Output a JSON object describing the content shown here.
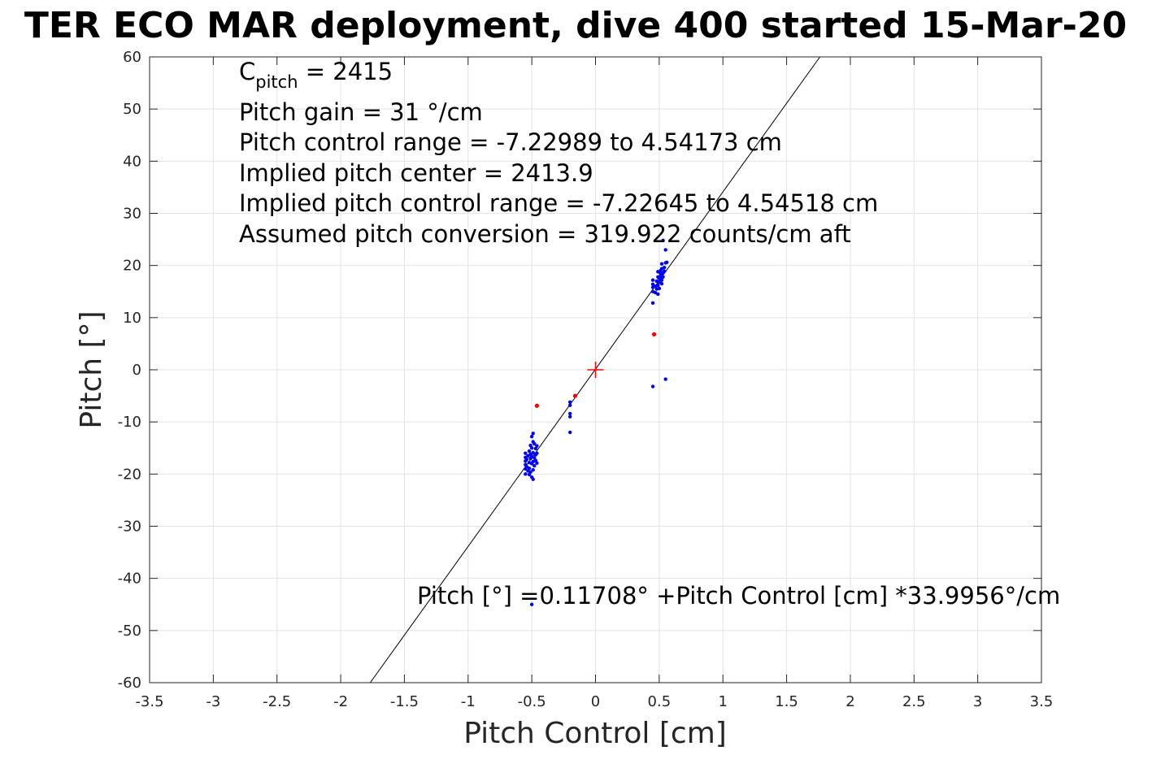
{
  "chart_data": {
    "type": "scatter",
    "title": "TER ECO MAR deployment, dive 400 started 15-Mar-20",
    "xlabel": "Pitch Control [cm]",
    "ylabel": "Pitch [°]",
    "xlim": [
      -3.5,
      3.5
    ],
    "ylim": [
      -60,
      60
    ],
    "xticks": [
      -3.5,
      -3,
      -2.5,
      -2,
      -1.5,
      -1,
      -0.5,
      0,
      0.5,
      1,
      1.5,
      2,
      2.5,
      3,
      3.5
    ],
    "xtick_labels": [
      "-3.5",
      "-3",
      "-2.5",
      "-2",
      "-1.5",
      "-1",
      "-0.5",
      "0",
      "0.5",
      "1",
      "1.5",
      "2",
      "2.5",
      "3",
      "3.5"
    ],
    "yticks": [
      -60,
      -50,
      -40,
      -30,
      -20,
      -10,
      0,
      10,
      20,
      30,
      40,
      50,
      60
    ],
    "ytick_labels": [
      "-60",
      "-50",
      "-40",
      "-30",
      "-20",
      "-10",
      "0",
      "10",
      "20",
      "30",
      "40",
      "50",
      "60"
    ],
    "grid": true,
    "colors": {
      "points": "#0000ff",
      "excluded": "#ff0000",
      "center": "#ff0000",
      "fit": "#000000"
    },
    "fit_line": {
      "intercept": 0.11708,
      "slope": 33.9956
    },
    "center_marker": {
      "x": 0,
      "y": 0
    },
    "series": [
      {
        "points": [
          [
            -0.55,
            -16.0
          ],
          [
            -0.55,
            -16.8
          ],
          [
            -0.55,
            -17.5
          ],
          [
            -0.55,
            -18.2
          ],
          [
            -0.55,
            -19.0
          ],
          [
            -0.55,
            -20.0
          ],
          [
            -0.54,
            -17.2
          ],
          [
            -0.54,
            -18.6
          ],
          [
            -0.53,
            -16.5
          ],
          [
            -0.53,
            -19.4
          ],
          [
            -0.52,
            -15.6
          ],
          [
            -0.52,
            -17.8
          ],
          [
            -0.52,
            -18.9
          ],
          [
            -0.52,
            -20.1
          ],
          [
            -0.51,
            -14.5
          ],
          [
            -0.51,
            -16.2
          ],
          [
            -0.51,
            -17.0
          ],
          [
            -0.51,
            -19.6
          ],
          [
            -0.5,
            -12.8
          ],
          [
            -0.5,
            -15.0
          ],
          [
            -0.5,
            -16.6
          ],
          [
            -0.5,
            -18.0
          ],
          [
            -0.5,
            -20.6
          ],
          [
            -0.49,
            -12.2
          ],
          [
            -0.49,
            -13.8
          ],
          [
            -0.49,
            -15.9
          ],
          [
            -0.49,
            -17.6
          ],
          [
            -0.49,
            -19.2
          ],
          [
            -0.49,
            -21.0
          ],
          [
            -0.48,
            -14.2
          ],
          [
            -0.48,
            -16.9
          ],
          [
            -0.48,
            -18.4
          ],
          [
            -0.47,
            -15.1
          ],
          [
            -0.47,
            -16.3
          ],
          [
            -0.47,
            -17.4
          ],
          [
            -0.46,
            -14.6
          ],
          [
            -0.46,
            -16.0
          ],
          [
            -0.46,
            -17.9
          ],
          [
            -0.2,
            -6.2
          ],
          [
            -0.2,
            -6.8
          ],
          [
            -0.2,
            -8.4
          ],
          [
            -0.2,
            -9.0
          ],
          [
            -0.2,
            -12.0
          ],
          [
            -0.5,
            -45.0
          ],
          [
            0.45,
            -3.2
          ],
          [
            0.55,
            -1.8
          ],
          [
            0.45,
            12.8
          ],
          [
            0.45,
            15.0
          ],
          [
            0.45,
            15.8
          ],
          [
            0.45,
            16.4
          ],
          [
            0.45,
            17.2
          ],
          [
            0.47,
            14.8
          ],
          [
            0.47,
            16.0
          ],
          [
            0.48,
            15.5
          ],
          [
            0.48,
            17.0
          ],
          [
            0.49,
            14.5
          ],
          [
            0.49,
            16.2
          ],
          [
            0.49,
            17.8
          ],
          [
            0.49,
            18.8
          ],
          [
            0.5,
            15.6
          ],
          [
            0.5,
            16.8
          ],
          [
            0.5,
            17.5
          ],
          [
            0.51,
            17.3
          ],
          [
            0.51,
            18.0
          ],
          [
            0.51,
            18.5
          ],
          [
            0.51,
            19.0
          ],
          [
            0.52,
            16.5
          ],
          [
            0.52,
            17.2
          ],
          [
            0.52,
            18.2
          ],
          [
            0.52,
            19.4
          ],
          [
            0.52,
            20.3
          ],
          [
            0.53,
            17.8
          ],
          [
            0.53,
            18.6
          ],
          [
            0.53,
            24.8
          ],
          [
            0.54,
            18.9
          ],
          [
            0.54,
            19.6
          ],
          [
            0.55,
            20.5
          ],
          [
            0.55,
            23.0
          ],
          [
            0.56,
            20.6
          ]
        ]
      },
      {
        "points": [
          [
            -0.46,
            -6.9
          ],
          [
            -0.16,
            -5.0
          ],
          [
            0.46,
            6.8
          ]
        ]
      }
    ],
    "annotations": [
      "C",
      "pitch",
      " = 2415",
      "Pitch gain = 31 °/cm",
      "Pitch control range = -7.22989 to 4.54173 cm",
      "Implied pitch center = 2413.9",
      "Implied pitch control range = -7.22645 to 4.54518 cm",
      "Assumed pitch conversion = 319.922 counts/cm aft",
      "Pitch [°] =0.11708° +Pitch Control [cm] *33.9956°/cm"
    ]
  }
}
